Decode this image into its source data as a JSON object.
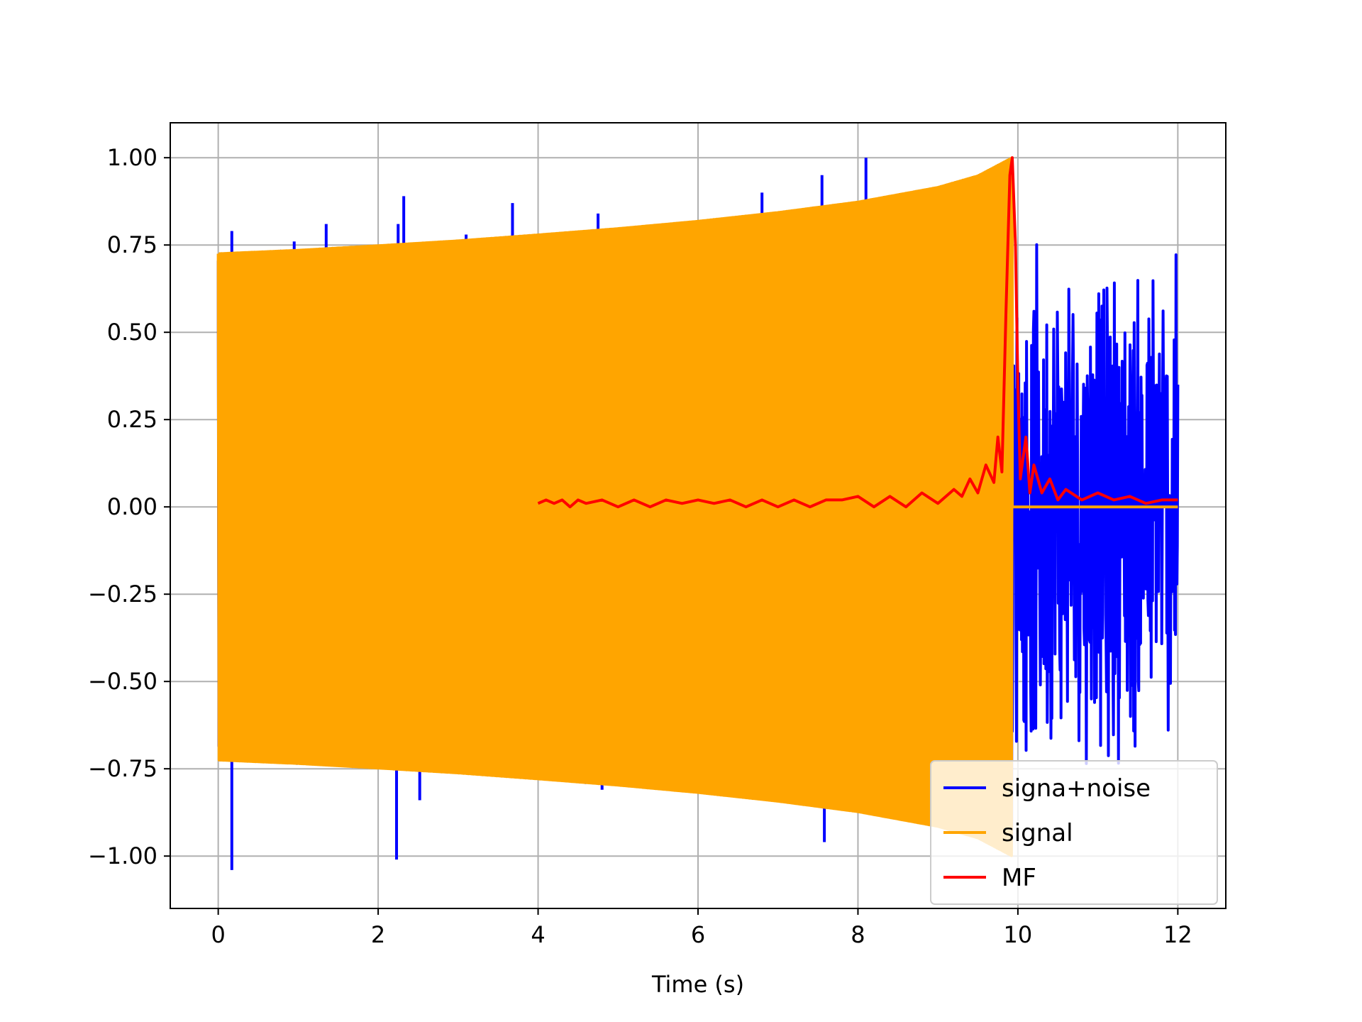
{
  "chart_data": {
    "type": "line",
    "title": "",
    "xlabel": "Time (s)",
    "ylabel": "",
    "xlim": [
      -0.6,
      12.6
    ],
    "ylim": [
      -1.15,
      1.1
    ],
    "xticks": [
      0,
      2,
      4,
      6,
      8,
      10,
      12
    ],
    "xtick_labels": [
      "0",
      "2",
      "4",
      "6",
      "8",
      "10",
      "12"
    ],
    "yticks": [
      1.0,
      0.75,
      0.5,
      0.25,
      0.0,
      -0.25,
      -0.5,
      -0.75,
      -1.0
    ],
    "ytick_labels": [
      "1.00",
      "0.75",
      "0.50",
      "0.25",
      "0.00",
      "−0.25",
      "−0.50",
      "−0.75",
      "−1.00"
    ],
    "grid": true,
    "legend_position": "lower right",
    "series": [
      {
        "name": "signa+noise",
        "color": "#0000ff",
        "description_points": {
          "chirp_span": [
            0,
            9.93
          ],
          "noise_span": [
            9.93,
            12.0
          ],
          "noise_amplitude_max": 0.77,
          "spikes": [
            [
              0.17,
              0.79
            ],
            [
              0.17,
              -1.04
            ],
            [
              0.95,
              0.76
            ],
            [
              1.35,
              0.81
            ],
            [
              2.25,
              0.81
            ],
            [
              2.32,
              0.89
            ],
            [
              2.23,
              -1.01
            ],
            [
              2.52,
              -0.84
            ],
            [
              3.1,
              0.78
            ],
            [
              3.68,
              0.87
            ],
            [
              4.75,
              0.84
            ],
            [
              4.8,
              -0.81
            ],
            [
              6.8,
              0.9
            ],
            [
              7.55,
              0.95
            ],
            [
              7.58,
              -0.96
            ],
            [
              8.1,
              1.0
            ]
          ]
        }
      },
      {
        "name": "signal",
        "color": "#ffa500",
        "envelope": {
          "t": [
            0,
            1,
            2,
            3,
            4,
            5,
            6,
            7,
            8,
            9,
            9.5,
            9.93
          ],
          "amplitude": [
            0.725,
            0.735,
            0.748,
            0.762,
            0.779,
            0.797,
            0.818,
            0.843,
            0.873,
            0.915,
            0.948,
            1.0
          ]
        },
        "end_time": 9.93,
        "after_end_value": 0.0
      },
      {
        "name": "MF",
        "color": "#ff0000",
        "x": [
          4.0,
          4.1,
          4.2,
          4.3,
          4.4,
          4.5,
          4.6,
          4.8,
          5.0,
          5.2,
          5.4,
          5.6,
          5.8,
          6.0,
          6.2,
          6.4,
          6.6,
          6.8,
          7.0,
          7.2,
          7.4,
          7.6,
          7.8,
          8.0,
          8.2,
          8.4,
          8.6,
          8.8,
          9.0,
          9.2,
          9.3,
          9.4,
          9.5,
          9.6,
          9.7,
          9.75,
          9.8,
          9.85,
          9.9,
          9.93,
          9.97,
          10.0,
          10.03,
          10.1,
          10.15,
          10.2,
          10.3,
          10.4,
          10.5,
          10.6,
          10.8,
          11.0,
          11.2,
          11.4,
          11.6,
          11.8,
          12.0
        ],
        "y": [
          0.01,
          0.02,
          0.01,
          0.02,
          0.0,
          0.02,
          0.01,
          0.02,
          0.0,
          0.02,
          0.0,
          0.02,
          0.01,
          0.02,
          0.01,
          0.02,
          0.0,
          0.02,
          0.0,
          0.02,
          0.0,
          0.02,
          0.02,
          0.03,
          0.0,
          0.03,
          0.0,
          0.04,
          0.01,
          0.05,
          0.03,
          0.08,
          0.04,
          0.12,
          0.07,
          0.2,
          0.1,
          0.55,
          0.95,
          1.0,
          0.75,
          0.35,
          0.08,
          0.2,
          0.04,
          0.12,
          0.04,
          0.08,
          0.02,
          0.05,
          0.02,
          0.04,
          0.02,
          0.03,
          0.01,
          0.02,
          0.02
        ]
      }
    ]
  }
}
